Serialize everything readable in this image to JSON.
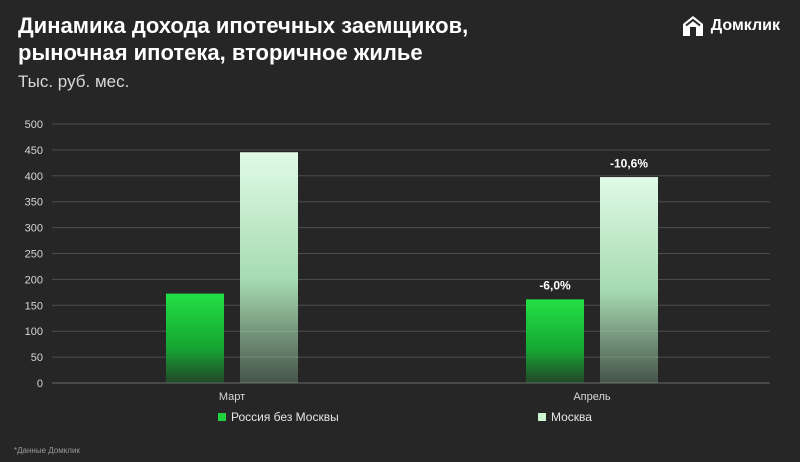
{
  "header": {
    "title": "Динамика дохода ипотечных заемщиков, рыночная ипотека, вторичное жилье",
    "subtitle": "Тыс. руб. мес.",
    "logo_text": "Домклик"
  },
  "footnote": "*Данные Домклик",
  "colors": {
    "background": "#262626",
    "russia": "#1fd13f",
    "moscow": "#c9f5d2",
    "grid": "#4d4d4d"
  },
  "chart_data": {
    "type": "bar",
    "categories": [
      "Март",
      "Апрель"
    ],
    "series": [
      {
        "name": "Россия без Москвы",
        "values": [
          172,
          161
        ],
        "labels": [
          "",
          "-6,0%"
        ]
      },
      {
        "name": "Москва",
        "values": [
          445,
          397
        ],
        "labels": [
          "",
          "-10,6%"
        ]
      }
    ],
    "yticks": [
      0,
      50,
      100,
      150,
      200,
      250,
      300,
      350,
      400,
      450,
      500
    ],
    "ylim": [
      0,
      500
    ],
    "grid": true,
    "legend_position": "bottom"
  }
}
